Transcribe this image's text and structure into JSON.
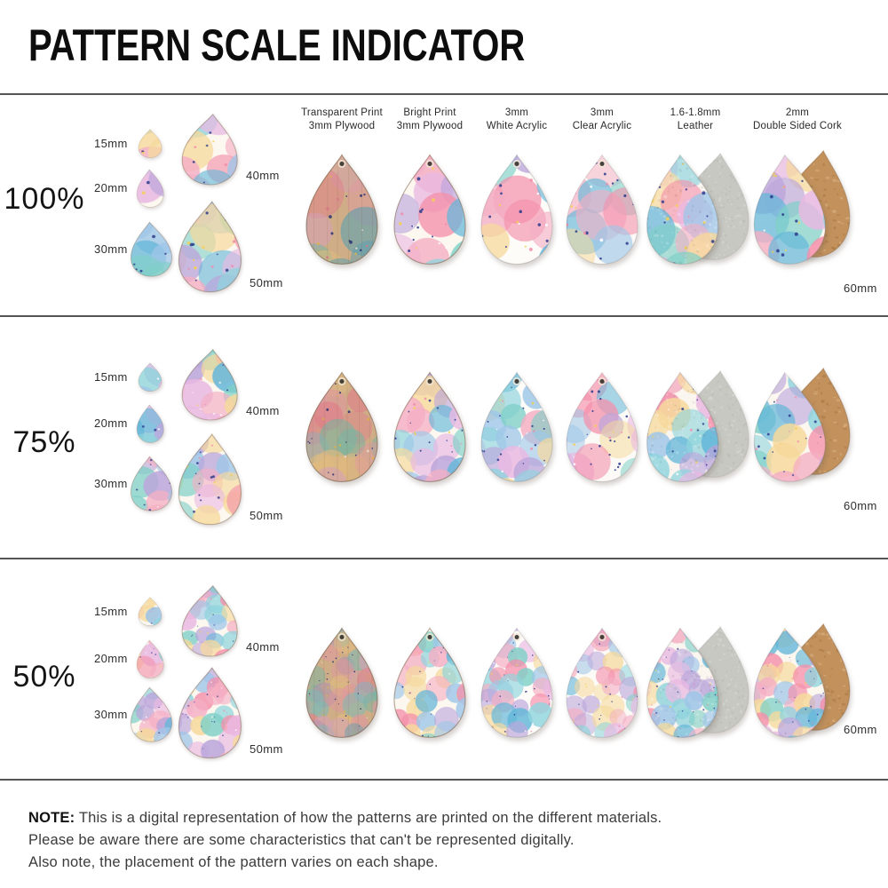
{
  "title": "PATTERN SCALE INDICATOR",
  "rows": [
    {
      "scale_label": "100%",
      "scale": 1.0
    },
    {
      "scale_label": "75%",
      "scale": 0.75
    },
    {
      "scale_label": "50%",
      "scale": 0.5
    }
  ],
  "sample_sizes": [
    {
      "label": "15mm"
    },
    {
      "label": "20mm"
    },
    {
      "label": "30mm"
    },
    {
      "label": "40mm"
    },
    {
      "label": "50mm"
    }
  ],
  "material_size_label": "60mm",
  "materials": [
    {
      "id": "transparent-plywood",
      "label": [
        "Transparent Print",
        "3mm Plywood"
      ]
    },
    {
      "id": "bright-plywood",
      "label": [
        "Bright Print",
        "3mm Plywood"
      ]
    },
    {
      "id": "white-acrylic",
      "label": [
        "3mm",
        "White Acrylic"
      ]
    },
    {
      "id": "clear-acrylic",
      "label": [
        "3mm",
        "Clear Acrylic"
      ]
    },
    {
      "id": "leather",
      "label": [
        "1.6-1.8mm",
        "Leather"
      ]
    },
    {
      "id": "cork",
      "label": [
        "2mm",
        "Double Sided Cork"
      ]
    }
  ],
  "note": {
    "label": "NOTE:",
    "lines": [
      "This is a digital representation of how the patterns are printed on the different materials.",
      "Please be aware there are some characteristics that can't be represented digitally.",
      "Also note, the placement of the pattern varies on each shape."
    ]
  },
  "colors": {
    "pattern": [
      "#f4afc4",
      "#9fc6e8",
      "#7fd0c8",
      "#bba6db",
      "#f490ab",
      "#65b7d9",
      "#8fd4dd",
      "#f6d99c",
      "#e9b9e2"
    ],
    "speckles": [
      "#2b3a8c",
      "#f3cf52",
      "#f08caa",
      "#ffffff"
    ],
    "cork": "#c2915c",
    "suede": "#c7c8c2",
    "wood_tint": "#b98d5e",
    "separator": "#555555",
    "text": "#222222"
  }
}
